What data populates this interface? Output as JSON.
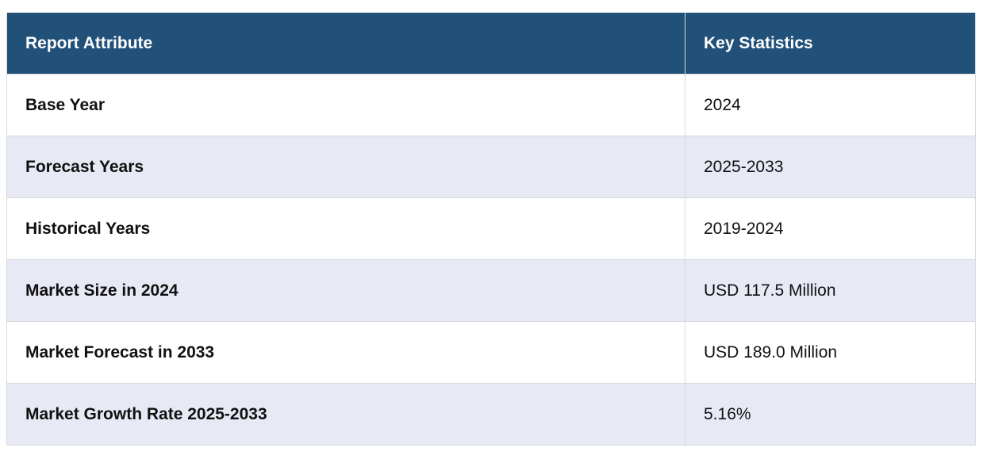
{
  "table": {
    "headers": [
      "Report Attribute",
      "Key Statistics"
    ],
    "rows": [
      {
        "attribute": "Base Year",
        "value": "2024"
      },
      {
        "attribute": "Forecast Years",
        "value": "2025-2033"
      },
      {
        "attribute": "Historical Years",
        "value": "2019-2024"
      },
      {
        "attribute": "Market Size in 2024",
        "value": "USD 117.5 Million"
      },
      {
        "attribute": "Market Forecast in 2033",
        "value": "USD 189.0 Million"
      },
      {
        "attribute": "Market Growth Rate 2025-2033",
        "value": "5.16%"
      }
    ]
  },
  "colors": {
    "header_bg": "#215079",
    "header_text": "#ffffff",
    "stripe_bg": "#e7e9f5",
    "border": "#d7d9de"
  }
}
